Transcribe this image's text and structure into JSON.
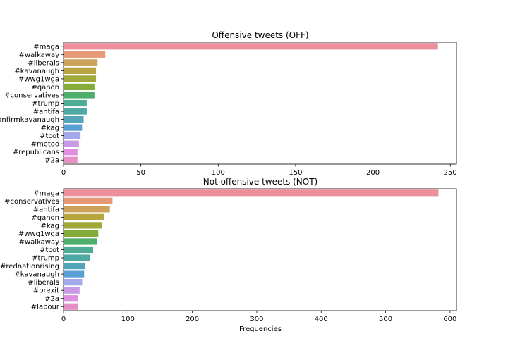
{
  "chart_data": [
    {
      "type": "bar",
      "orientation": "horizontal",
      "title": "Offensive tweets (OFF)",
      "xlabel": "",
      "ylabel": "",
      "categories": [
        "#maga",
        "#walkaway",
        "#liberals",
        "#kavanaugh",
        "#wwg1wga",
        "#qanon",
        "#conservatives",
        "#trump",
        "#antifa",
        "#confirmkavanaugh",
        "#kag",
        "#tcot",
        "#metoo",
        "#republicans",
        "#2a"
      ],
      "values": [
        242,
        27,
        22,
        21,
        21,
        20,
        20,
        15,
        15,
        13,
        12,
        11,
        10,
        9,
        9
      ],
      "xlim": [
        0,
        254
      ],
      "xticks": [
        0,
        50,
        100,
        150,
        200,
        250
      ],
      "grid": false,
      "colors": [
        "#ea8f9b",
        "#e59a75",
        "#cda25a",
        "#b8a43c",
        "#a1a83a",
        "#83ac3a",
        "#4fae6b",
        "#4dac93",
        "#4ea9a4",
        "#52a5b7",
        "#5aa0d5",
        "#a4a9e9",
        "#c99ae8",
        "#e08ee0",
        "#e68fc7"
      ]
    },
    {
      "type": "bar",
      "orientation": "horizontal",
      "title": "Not offensive tweets  (NOT)",
      "xlabel": "Frequencies",
      "ylabel": "",
      "categories": [
        "#maga",
        "#conservatives",
        "#antifa",
        "#qanon",
        "#kag",
        "#wwg1wga",
        "#walkaway",
        "#tcot",
        "#trump",
        "#rednationrising",
        "#kavanaugh",
        "#liberals",
        "#brexit",
        "#2a",
        "#labour"
      ],
      "values": [
        582,
        76,
        72,
        63,
        60,
        54,
        52,
        46,
        41,
        34,
        32,
        29,
        25,
        23,
        23
      ],
      "xlim": [
        0,
        610
      ],
      "xticks": [
        0,
        100,
        200,
        300,
        400,
        500,
        600
      ],
      "grid": false,
      "colors": [
        "#ea8f9b",
        "#e59a75",
        "#cda25a",
        "#b8a43c",
        "#a1a83a",
        "#83ac3a",
        "#4fae6b",
        "#4dac93",
        "#4ea9a4",
        "#52a5b7",
        "#5aa0d5",
        "#a4a9e9",
        "#c99ae8",
        "#e08ee0",
        "#e68fc7"
      ]
    }
  ]
}
